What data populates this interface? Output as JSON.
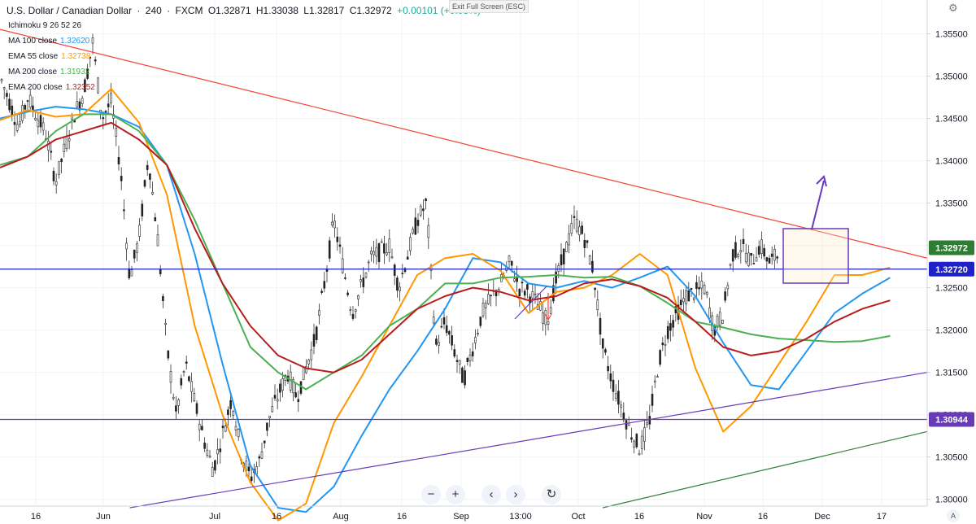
{
  "header": {
    "symbol": "U.S. Dollar / Canadian Dollar",
    "sep1": "·",
    "timeframe": "240",
    "sep2": "·",
    "source": "FXCM",
    "open": "O1.32871",
    "high": "H1.33038",
    "low": "L1.32817",
    "close": "C1.32972",
    "change": "+0.00101 (+0.08%)"
  },
  "indicators": [
    {
      "label": "Ichimoku 9 26 52 26",
      "value": "",
      "color": "#787b86"
    },
    {
      "label": "MA 100 close",
      "value": "1.32620",
      "color": "#2196f3"
    },
    {
      "label": "EMA 55 close",
      "value": "1.32738",
      "color": "#ff9800"
    },
    {
      "label": "MA 200 close",
      "value": "1.31932",
      "color": "#4caf50"
    },
    {
      "label": "EMA 200 close",
      "value": "1.32352",
      "color": "#b71c1c"
    }
  ],
  "exit_fullscreen": "Exit Full Screen (ESC)",
  "toolbar": {
    "minus": "−",
    "plus": "+",
    "left": "‹",
    "right": "›",
    "reset": "↻"
  },
  "corner_label": "A",
  "chart_data": {
    "type": "candlestick",
    "price_axis": [
      "1.35500",
      "1.35000",
      "1.34500",
      "1.34000",
      "1.33500",
      "1.33000",
      "1.32500",
      "1.32000",
      "1.31500",
      "1.31000",
      "1.30500",
      "1.30000"
    ],
    "ylim": [
      1.2992,
      1.359
    ],
    "time_axis": [
      "16",
      "Jun",
      "Jul",
      "16",
      "Aug",
      "16",
      "Sep",
      "13:00",
      "Oct",
      "16",
      "Nov",
      "16",
      "Dec",
      "17"
    ],
    "price_labels": [
      {
        "text": "1.32972",
        "color": "#2e7d32",
        "price": 1.32972
      },
      {
        "text": "1.32720",
        "color": "#1e22c8",
        "price": 1.3272
      },
      {
        "text": "1.30944",
        "color": "#673ab7",
        "price": 1.30944
      }
    ],
    "series": [
      {
        "name": "MA 100 close",
        "color": "#2196f3",
        "points": [
          [
            "0.00",
            1.345
          ],
          [
            "0.03",
            1.3458
          ],
          [
            "0.06",
            1.3464
          ],
          [
            "0.09",
            1.3461
          ],
          [
            "0.12",
            1.3455
          ],
          [
            "0.15",
            1.344
          ],
          [
            "0.18",
            1.3395
          ],
          [
            "0.21",
            1.329
          ],
          [
            "0.24",
            1.316
          ],
          [
            "0.27",
            1.304
          ],
          [
            "0.30",
            1.299
          ],
          [
            "0.33",
            1.2985
          ],
          [
            "0.36",
            1.3015
          ],
          [
            "0.39",
            1.3075
          ],
          [
            "0.42",
            1.313
          ],
          [
            "0.45",
            1.3175
          ],
          [
            "0.48",
            1.3225
          ],
          [
            "0.51",
            1.3285
          ],
          [
            "0.54",
            1.328
          ],
          [
            "0.57",
            1.3255
          ],
          [
            "0.60",
            1.325
          ],
          [
            "0.63",
            1.3258
          ],
          [
            "0.66",
            1.325
          ],
          [
            "0.69",
            1.3262
          ],
          [
            "0.72",
            1.3275
          ],
          [
            "0.75",
            1.324
          ],
          [
            "0.78",
            1.3185
          ],
          [
            "0.81",
            1.3135
          ],
          [
            "0.84",
            1.313
          ],
          [
            "0.87",
            1.3175
          ],
          [
            "0.90",
            1.322
          ],
          [
            "0.93",
            1.3243
          ],
          [
            "0.96",
            1.3262
          ]
        ]
      },
      {
        "name": "EMA 55 close",
        "color": "#ff9800",
        "points": [
          [
            "0.00",
            1.3448
          ],
          [
            "0.03",
            1.346
          ],
          [
            "0.06",
            1.3452
          ],
          [
            "0.09",
            1.3455
          ],
          [
            "0.12",
            1.3485
          ],
          [
            "0.15",
            1.3445
          ],
          [
            "0.18",
            1.336
          ],
          [
            "0.21",
            1.3205
          ],
          [
            "0.24",
            1.31
          ],
          [
            "0.27",
            1.302
          ],
          [
            "0.30",
            1.2975
          ],
          [
            "0.33",
            1.2995
          ],
          [
            "0.36",
            1.309
          ],
          [
            "0.39",
            1.3145
          ],
          [
            "0.42",
            1.3205
          ],
          [
            "0.45",
            1.3265
          ],
          [
            "0.48",
            1.3285
          ],
          [
            "0.51",
            1.329
          ],
          [
            "0.54",
            1.327
          ],
          [
            "0.57",
            1.322
          ],
          [
            "0.60",
            1.3245
          ],
          [
            "0.63",
            1.325
          ],
          [
            "0.66",
            1.3265
          ],
          [
            "0.69",
            1.329
          ],
          [
            "0.72",
            1.3265
          ],
          [
            "0.75",
            1.3155
          ],
          [
            "0.78",
            1.308
          ],
          [
            "0.81",
            1.311
          ],
          [
            "0.84",
            1.316
          ],
          [
            "0.87",
            1.321
          ],
          [
            "0.90",
            1.3265
          ],
          [
            "0.93",
            1.3265
          ],
          [
            "0.96",
            1.3274
          ]
        ]
      },
      {
        "name": "MA 200 close",
        "color": "#4caf50",
        "points": [
          [
            "0.00",
            1.3395
          ],
          [
            "0.03",
            1.3405
          ],
          [
            "0.06",
            1.3435
          ],
          [
            "0.09",
            1.3455
          ],
          [
            "0.12",
            1.3455
          ],
          [
            "0.15",
            1.3435
          ],
          [
            "0.18",
            1.3395
          ],
          [
            "0.21",
            1.333
          ],
          [
            "0.24",
            1.3255
          ],
          [
            "0.27",
            1.318
          ],
          [
            "0.30",
            1.315
          ],
          [
            "0.33",
            1.313
          ],
          [
            "0.36",
            1.315
          ],
          [
            "0.39",
            1.317
          ],
          [
            "0.42",
            1.3205
          ],
          [
            "0.45",
            1.3225
          ],
          [
            "0.48",
            1.3255
          ],
          [
            "0.51",
            1.3255
          ],
          [
            "0.54",
            1.3262
          ],
          [
            "0.57",
            1.3263
          ],
          [
            "0.60",
            1.3265
          ],
          [
            "0.63",
            1.3262
          ],
          [
            "0.66",
            1.3263
          ],
          [
            "0.69",
            1.3252
          ],
          [
            "0.72",
            1.3232
          ],
          [
            "0.75",
            1.321
          ],
          [
            "0.78",
            1.3203
          ],
          [
            "0.81",
            1.3195
          ],
          [
            "0.84",
            1.319
          ],
          [
            "0.87",
            1.3188
          ],
          [
            "0.90",
            1.3186
          ],
          [
            "0.93",
            1.3187
          ],
          [
            "0.96",
            1.3193
          ]
        ]
      },
      {
        "name": "EMA 200 close",
        "color": "#b71c1c",
        "points": [
          [
            "0.00",
            1.3392
          ],
          [
            "0.03",
            1.3405
          ],
          [
            "0.06",
            1.3425
          ],
          [
            "0.09",
            1.3435
          ],
          [
            "0.12",
            1.3445
          ],
          [
            "0.15",
            1.3425
          ],
          [
            "0.18",
            1.3395
          ],
          [
            "0.21",
            1.332
          ],
          [
            "0.24",
            1.3255
          ],
          [
            "0.27",
            1.3205
          ],
          [
            "0.30",
            1.317
          ],
          [
            "0.33",
            1.3155
          ],
          [
            "0.36",
            1.315
          ],
          [
            "0.39",
            1.3165
          ],
          [
            "0.42",
            1.3195
          ],
          [
            "0.45",
            1.3225
          ],
          [
            "0.48",
            1.324
          ],
          [
            "0.51",
            1.325
          ],
          [
            "0.54",
            1.3245
          ],
          [
            "0.57",
            1.3235
          ],
          [
            "0.60",
            1.324
          ],
          [
            "0.63",
            1.3255
          ],
          [
            "0.66",
            1.326
          ],
          [
            "0.69",
            1.3252
          ],
          [
            "0.72",
            1.3238
          ],
          [
            "0.75",
            1.321
          ],
          [
            "0.78",
            1.318
          ],
          [
            "0.81",
            1.317
          ],
          [
            "0.84",
            1.3175
          ],
          [
            "0.87",
            1.319
          ],
          [
            "0.90",
            1.321
          ],
          [
            "0.93",
            1.3225
          ],
          [
            "0.96",
            1.3235
          ]
        ]
      }
    ],
    "price_path": [
      [
        0.0,
        1.35
      ],
      [
        0.02,
        1.344
      ],
      [
        0.03,
        1.3475
      ],
      [
        0.05,
        1.343
      ],
      [
        0.06,
        1.3375
      ],
      [
        0.08,
        1.3455
      ],
      [
        0.09,
        1.348
      ],
      [
        0.1,
        1.354
      ],
      [
        0.11,
        1.345
      ],
      [
        0.12,
        1.347
      ],
      [
        0.13,
        1.339
      ],
      [
        0.14,
        1.326
      ],
      [
        0.15,
        1.331
      ],
      [
        0.16,
        1.3405
      ],
      [
        0.17,
        1.331
      ],
      [
        0.18,
        1.318
      ],
      [
        0.19,
        1.31
      ],
      [
        0.2,
        1.316
      ],
      [
        0.22,
        1.307
      ],
      [
        0.23,
        1.3035
      ],
      [
        0.25,
        1.312
      ],
      [
        0.26,
        1.3055
      ],
      [
        0.27,
        1.3025
      ],
      [
        0.28,
        1.3045
      ],
      [
        0.29,
        1.3095
      ],
      [
        0.31,
        1.315
      ],
      [
        0.32,
        1.312
      ],
      [
        0.34,
        1.319
      ],
      [
        0.35,
        1.3255
      ],
      [
        0.36,
        1.333
      ],
      [
        0.38,
        1.322
      ],
      [
        0.4,
        1.3285
      ],
      [
        0.42,
        1.33
      ],
      [
        0.43,
        1.325
      ],
      [
        0.45,
        1.333
      ],
      [
        0.46,
        1.335
      ],
      [
        0.47,
        1.318
      ],
      [
        0.48,
        1.321
      ],
      [
        0.5,
        1.314
      ],
      [
        0.51,
        1.318
      ],
      [
        0.52,
        1.322
      ],
      [
        0.54,
        1.3255
      ],
      [
        0.55,
        1.328
      ],
      [
        0.56,
        1.325
      ],
      [
        0.57,
        1.3245
      ],
      [
        0.58,
        1.323
      ],
      [
        0.59,
        1.321
      ],
      [
        0.6,
        1.326
      ],
      [
        0.62,
        1.333
      ],
      [
        0.63,
        1.331
      ],
      [
        0.64,
        1.327
      ],
      [
        0.65,
        1.318
      ],
      [
        0.66,
        1.314
      ],
      [
        0.67,
        1.311
      ],
      [
        0.68,
        1.308
      ],
      [
        0.69,
        1.306
      ],
      [
        0.7,
        1.309
      ],
      [
        0.71,
        1.316
      ],
      [
        0.72,
        1.32
      ],
      [
        0.74,
        1.324
      ],
      [
        0.76,
        1.325
      ],
      [
        0.77,
        1.32
      ],
      [
        0.78,
        1.322
      ],
      [
        0.79,
        1.329
      ],
      [
        0.8,
        1.33
      ],
      [
        0.81,
        1.328
      ],
      [
        0.82,
        1.33
      ],
      [
        0.83,
        1.328
      ],
      [
        0.84,
        1.329
      ]
    ],
    "annotations": [
      {
        "type": "trendline",
        "color": "#f44336",
        "from": [
          "-0.01",
          1.3558
        ],
        "to": [
          "1.00",
          1.3285
        ]
      },
      {
        "type": "trendline",
        "color": "#673ab7",
        "from": [
          "0.14",
          1.299
        ],
        "to": [
          "1.00",
          1.315
        ]
      },
      {
        "type": "trendline",
        "color": "#2e7d32",
        "from": [
          "0.65",
          1.299
        ],
        "to": [
          "1.00",
          1.308
        ]
      },
      {
        "type": "hline",
        "color": "#1e22c8",
        "price": 1.3272
      },
      {
        "type": "hline",
        "color": "#673ab7",
        "price": 1.30944
      },
      {
        "type": "box",
        "color": "#673ab7"
      },
      {
        "type": "arrow-up",
        "color": "#673ab7"
      },
      {
        "type": "arrow-down",
        "color": "#f44336"
      }
    ]
  }
}
